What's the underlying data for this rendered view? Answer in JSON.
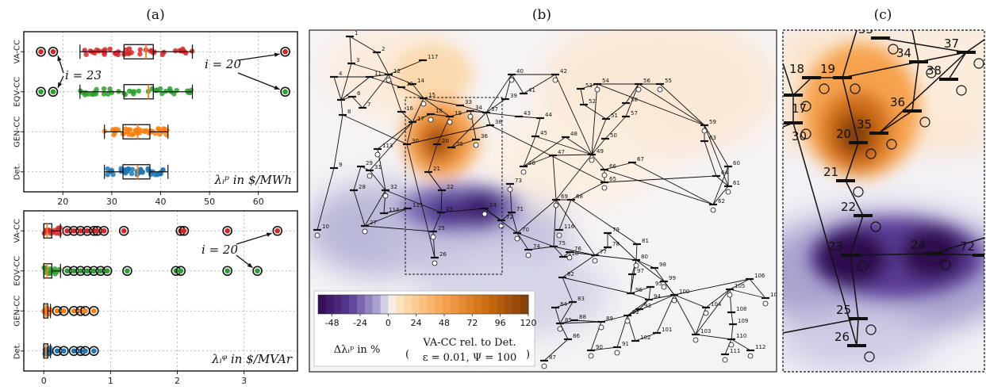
{
  "panel_labels": [
    "(a)",
    "(b)",
    "(c)"
  ],
  "chart_data": [
    {
      "type": "box",
      "title": "",
      "xlabel": "λᵢᵖ in $/MWh",
      "xlim": [
        12,
        68
      ],
      "xticks": [
        20,
        30,
        40,
        50,
        60
      ],
      "categories": [
        "VA-CC",
        "EQV-CC",
        "GEN-CC",
        "Det."
      ],
      "colors": [
        "#d62728",
        "#2ca02c",
        "#ff7f0e",
        "#1f77b4"
      ],
      "grid": true,
      "series": [
        {
          "name": "VA-CC",
          "q1": 32.5,
          "median": 37.0,
          "q3": 38.5,
          "whisker_low": 23.5,
          "whisker_high": 46.5,
          "outliers": [
            15.5,
            18.0,
            65.5
          ]
        },
        {
          "name": "EQV-CC",
          "q1": 32.5,
          "median": 37.5,
          "q3": 38.5,
          "whisker_low": 23.5,
          "whisker_high": 46.5,
          "outliers": [
            15.5,
            18.0,
            65.5
          ]
        },
        {
          "name": "GEN-CC",
          "q1": 32.3,
          "median": 35.3,
          "q3": 37.8,
          "whisker_low": 28.5,
          "whisker_high": 41.5,
          "outliers": []
        },
        {
          "name": "Det.",
          "q1": 32.3,
          "median": 35.3,
          "q3": 37.8,
          "whisker_low": 28.5,
          "whisker_high": 41.5,
          "outliers": []
        }
      ],
      "annotations": [
        {
          "text": "i = 23"
        },
        {
          "text": "i = 20"
        }
      ]
    },
    {
      "type": "box",
      "title": "",
      "xlabel": "λᵢᵠ in $/MVAr",
      "xlim": [
        -0.3,
        3.8
      ],
      "xticks": [
        0,
        1,
        2,
        3
      ],
      "categories": [
        "VA-CC",
        "EQV-CC",
        "GEN-CC",
        "Det."
      ],
      "colors": [
        "#d62728",
        "#2ca02c",
        "#ff7f0e",
        "#1f77b4"
      ],
      "grid": true,
      "series": [
        {
          "name": "VA-CC",
          "q1": 0.0,
          "median": 0.05,
          "q3": 0.12,
          "whisker_low": 0.0,
          "whisker_high": 0.25,
          "outliers": [
            0.35,
            0.45,
            0.55,
            0.65,
            0.75,
            0.8,
            0.9,
            1.2,
            2.05,
            2.1,
            2.75,
            3.5
          ]
        },
        {
          "name": "EQV-CC",
          "q1": 0.0,
          "median": 0.05,
          "q3": 0.12,
          "whisker_low": 0.0,
          "whisker_high": 0.25,
          "outliers": [
            0.35,
            0.45,
            0.55,
            0.65,
            0.75,
            0.85,
            0.95,
            1.25,
            1.98,
            2.05,
            2.75,
            3.2
          ]
        },
        {
          "name": "GEN-CC",
          "q1": 0.0,
          "median": 0.03,
          "q3": 0.06,
          "whisker_low": 0.0,
          "whisker_high": 0.1,
          "outliers": [
            0.2,
            0.3,
            0.45,
            0.55,
            0.62,
            0.75
          ]
        },
        {
          "name": "Det.",
          "q1": 0.0,
          "median": 0.03,
          "q3": 0.06,
          "whisker_low": 0.0,
          "whisker_high": 0.1,
          "outliers": [
            0.2,
            0.3,
            0.45,
            0.55,
            0.62,
            0.75
          ]
        }
      ],
      "annotations": [
        {
          "text": "i = 20"
        }
      ]
    },
    {
      "type": "heatmap",
      "title": "",
      "colorbar": {
        "label": "Δλᵢᵖ in %",
        "ticks": [
          -48,
          -24,
          0,
          24,
          48,
          72,
          96,
          120
        ],
        "range": [
          -60,
          120
        ],
        "note_lines": [
          "VA-CC rel. to Det.",
          "ε = 0.01, Ψ = 100"
        ]
      },
      "hotspots": [
        {
          "bus": 20,
          "delta_percent": 120
        },
        {
          "bus": 23,
          "delta_percent": -48
        },
        {
          "bus": 24,
          "delta_percent": -48
        }
      ]
    }
  ],
  "network_b": {
    "bus_labels": [
      "1",
      "2",
      "3",
      "4",
      "5",
      "6",
      "7",
      "8",
      "9",
      "10",
      "11",
      "12",
      "13",
      "14",
      "15",
      "16",
      "17",
      "18",
      "19",
      "20",
      "21",
      "22",
      "23",
      "24",
      "25",
      "26",
      "27",
      "28",
      "29",
      "30",
      "31",
      "32",
      "33",
      "34",
      "35",
      "36",
      "37",
      "38",
      "39",
      "40",
      "41",
      "42",
      "43",
      "44",
      "45",
      "46",
      "47",
      "48",
      "49",
      "50",
      "51",
      "52",
      "53",
      "54",
      "55",
      "56",
      "57",
      "58",
      "59",
      "60",
      "61",
      "62",
      "63",
      "64",
      "65",
      "66",
      "67",
      "68",
      "69",
      "70",
      "71",
      "72",
      "73",
      "74",
      "75",
      "76",
      "77",
      "78",
      "79",
      "80",
      "81",
      "82",
      "83",
      "84",
      "85",
      "86",
      "87",
      "88",
      "89",
      "90",
      "91",
      "92",
      "93",
      "94",
      "95",
      "96",
      "97",
      "98",
      "99",
      "100",
      "101",
      "102",
      "103",
      "104",
      "105",
      "106",
      "107",
      "108",
      "109",
      "110",
      "111",
      "112",
      "113",
      "114",
      "115",
      "116",
      "117",
      "118"
    ]
  },
  "zoom_c": {
    "bus_labels": [
      "17",
      "18",
      "19",
      "20",
      "21",
      "22",
      "23",
      "24",
      "25",
      "26",
      "30",
      "33",
      "34",
      "35",
      "36",
      "37",
      "38",
      "72"
    ]
  }
}
